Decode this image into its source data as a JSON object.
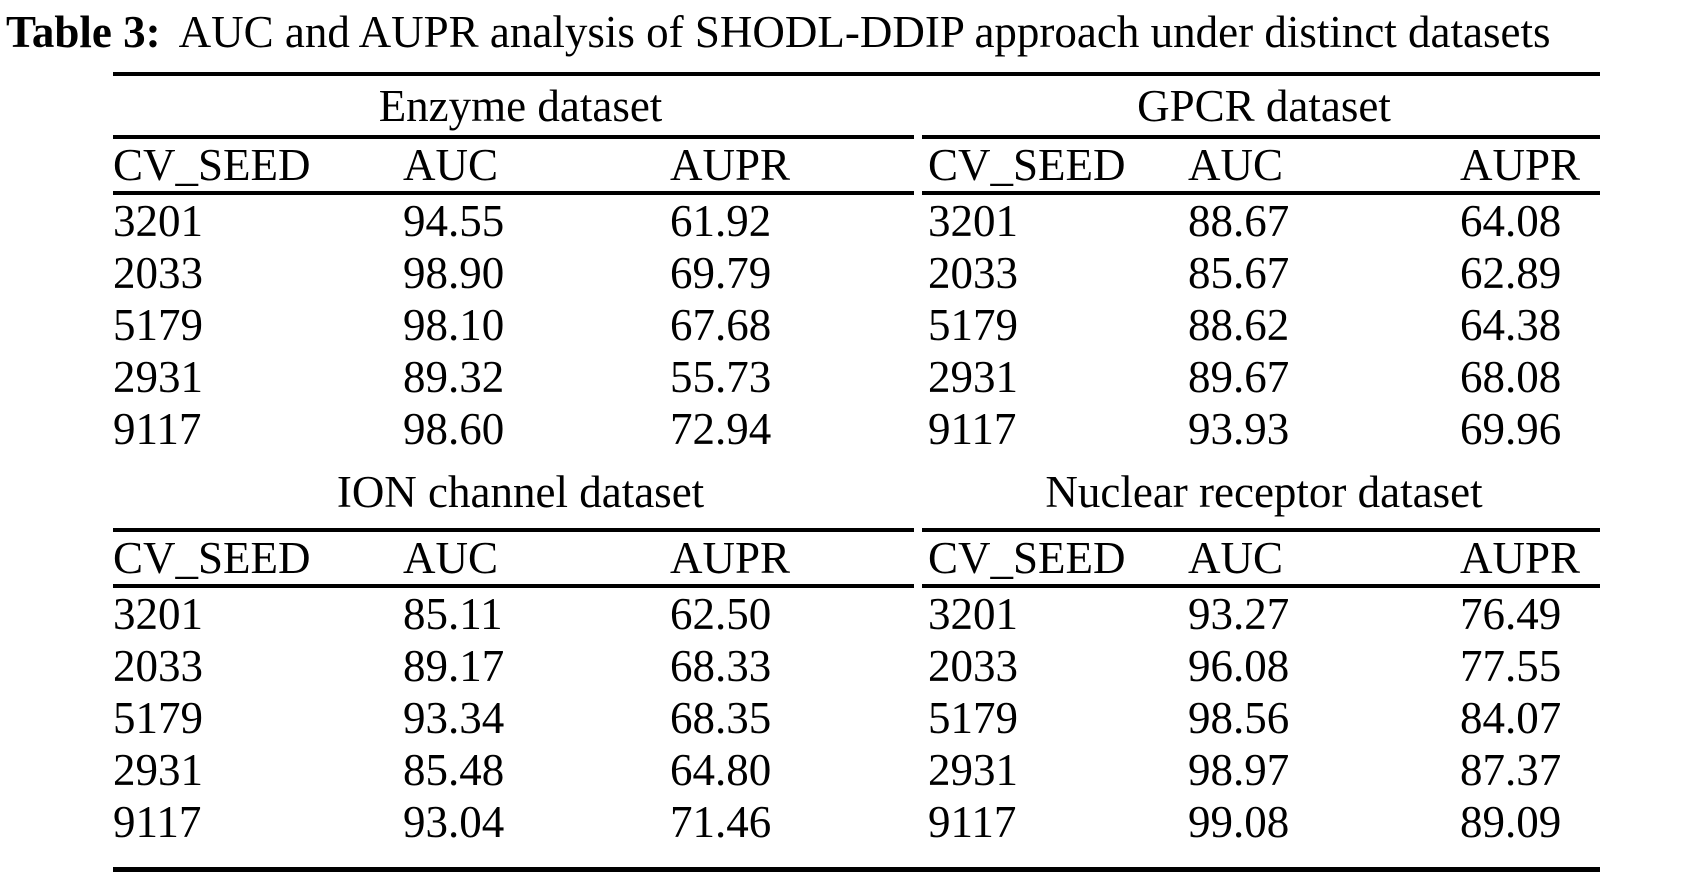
{
  "caption": {
    "label": "Table 3:",
    "text": "AUC and AUPR analysis of SHODL-DDIP approach under distinct datasets"
  },
  "columns": {
    "seed": "CV_SEED",
    "auc": "AUC",
    "aupr": "AUPR"
  },
  "tables": [
    {
      "name": "Enzyme dataset",
      "rows": [
        {
          "seed": "3201",
          "auc": "94.55",
          "aupr": "61.92"
        },
        {
          "seed": "2033",
          "auc": "98.90",
          "aupr": "69.79"
        },
        {
          "seed": "5179",
          "auc": "98.10",
          "aupr": "67.68"
        },
        {
          "seed": "2931",
          "auc": "89.32",
          "aupr": "55.73"
        },
        {
          "seed": "9117",
          "auc": "98.60",
          "aupr": "72.94"
        }
      ]
    },
    {
      "name": "GPCR dataset",
      "rows": [
        {
          "seed": "3201",
          "auc": "88.67",
          "aupr": "64.08"
        },
        {
          "seed": "2033",
          "auc": "85.67",
          "aupr": "62.89"
        },
        {
          "seed": "5179",
          "auc": "88.62",
          "aupr": "64.38"
        },
        {
          "seed": "2931",
          "auc": "89.67",
          "aupr": "68.08"
        },
        {
          "seed": "9117",
          "auc": "93.93",
          "aupr": "69.96"
        }
      ]
    },
    {
      "name": "ION channel dataset",
      "rows": [
        {
          "seed": "3201",
          "auc": "85.11",
          "aupr": "62.50"
        },
        {
          "seed": "2033",
          "auc": "89.17",
          "aupr": "68.33"
        },
        {
          "seed": "5179",
          "auc": "93.34",
          "aupr": "68.35"
        },
        {
          "seed": "2931",
          "auc": "85.48",
          "aupr": "64.80"
        },
        {
          "seed": "9117",
          "auc": "93.04",
          "aupr": "71.46"
        }
      ]
    },
    {
      "name": "Nuclear receptor dataset",
      "rows": [
        {
          "seed": "3201",
          "auc": "93.27",
          "aupr": "76.49"
        },
        {
          "seed": "2033",
          "auc": "96.08",
          "aupr": "77.55"
        },
        {
          "seed": "5179",
          "auc": "98.56",
          "aupr": "84.07"
        },
        {
          "seed": "2931",
          "auc": "98.97",
          "aupr": "87.37"
        },
        {
          "seed": "9117",
          "auc": "99.08",
          "aupr": "89.09"
        }
      ]
    }
  ],
  "colors": {
    "text": "#000000",
    "background": "#ffffff"
  }
}
